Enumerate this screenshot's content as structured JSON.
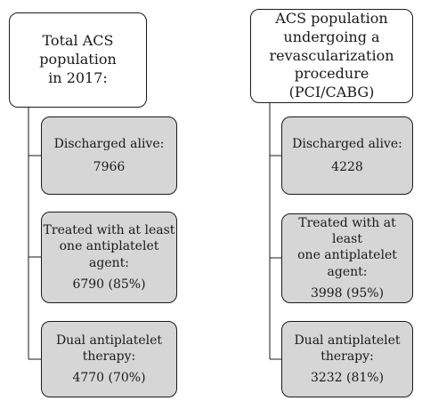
{
  "left": {
    "head": [
      "Total ACS population",
      "in 2017:"
    ],
    "steps": [
      {
        "lines": [
          "Discharged alive:"
        ],
        "value": "7966"
      },
      {
        "lines": [
          "Treated with at least",
          "one antiplatelet",
          "agent:"
        ],
        "value": "6790 (85%)"
      },
      {
        "lines": [
          "Dual antiplatelet",
          "therapy:"
        ],
        "value": "4770 (70%)"
      }
    ]
  },
  "right": {
    "head": [
      "ACS population",
      "undergoing a",
      "revascularization",
      "procedure (PCI/CABG)"
    ],
    "steps": [
      {
        "lines": [
          "Discharged alive:"
        ],
        "value": "4228"
      },
      {
        "lines": [
          "Treated with at least",
          "one antiplatelet",
          "agent:"
        ],
        "value": "3998 (95%)"
      },
      {
        "lines": [
          "Dual antiplatelet",
          "therapy:"
        ],
        "value": "3232 (81%)"
      }
    ]
  },
  "colors": {
    "box_border": "#1a1a1a",
    "step_fill": "#d6d6d6",
    "head_fill": "#ffffff"
  }
}
